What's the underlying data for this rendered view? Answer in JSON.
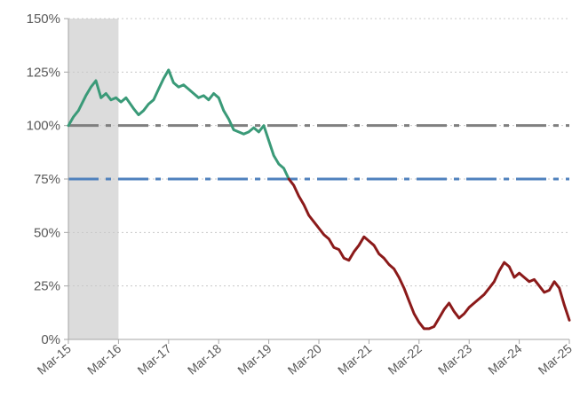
{
  "chart_data": {
    "type": "line",
    "x_ticks": [
      "Mar-15",
      "Mar-16",
      "Mar-17",
      "Mar-18",
      "Mar-19",
      "Mar-20",
      "Mar-21",
      "Mar-22",
      "Mar-23",
      "Mar-24",
      "Mar-25"
    ],
    "y_ticks": [
      "0%",
      "25%",
      "50%",
      "75%",
      "100%",
      "125%",
      "150%"
    ],
    "ylim": [
      0,
      150
    ],
    "xlim": [
      2015.0,
      2025.0
    ],
    "grid": "horizontal dotted",
    "legend": "none",
    "shaded_band": {
      "x_start": 2015.0,
      "x_end": 2016.0,
      "color": "#dcdcdc"
    },
    "reference_lines": [
      {
        "y": 100,
        "color": "#7f7f7f",
        "style": "dash-dot"
      },
      {
        "y": 75,
        "color": "#4f81bd",
        "style": "dash-dot"
      }
    ],
    "threshold_color_change_y": 75,
    "colors": {
      "above": "#3a9a78",
      "below": "#8b1a1a",
      "axis": "#a6a6a6",
      "grid": "#c8c8c8"
    },
    "series": [
      {
        "points": [
          [
            2015.0,
            100
          ],
          [
            2015.1,
            104
          ],
          [
            2015.2,
            107
          ],
          [
            2015.35,
            114
          ],
          [
            2015.45,
            118
          ],
          [
            2015.55,
            121
          ],
          [
            2015.65,
            113
          ],
          [
            2015.75,
            115
          ],
          [
            2015.85,
            112
          ],
          [
            2015.95,
            113
          ],
          [
            2016.05,
            111
          ],
          [
            2016.15,
            113
          ],
          [
            2016.3,
            108
          ],
          [
            2016.4,
            105
          ],
          [
            2016.5,
            107
          ],
          [
            2016.6,
            110
          ],
          [
            2016.7,
            112
          ],
          [
            2016.8,
            117
          ],
          [
            2016.9,
            122
          ],
          [
            2017.0,
            126
          ],
          [
            2017.1,
            120
          ],
          [
            2017.2,
            118
          ],
          [
            2017.3,
            119
          ],
          [
            2017.4,
            117
          ],
          [
            2017.5,
            115
          ],
          [
            2017.6,
            113
          ],
          [
            2017.7,
            114
          ],
          [
            2017.8,
            112
          ],
          [
            2017.9,
            115
          ],
          [
            2018.0,
            113
          ],
          [
            2018.1,
            107
          ],
          [
            2018.2,
            103
          ],
          [
            2018.3,
            98
          ],
          [
            2018.4,
            97
          ],
          [
            2018.5,
            96
          ],
          [
            2018.6,
            97
          ],
          [
            2018.7,
            99
          ],
          [
            2018.8,
            97
          ],
          [
            2018.9,
            100
          ],
          [
            2019.0,
            93
          ],
          [
            2019.1,
            86
          ],
          [
            2019.2,
            82
          ],
          [
            2019.3,
            80
          ],
          [
            2019.4,
            75
          ],
          [
            2019.5,
            72
          ],
          [
            2019.6,
            67
          ],
          [
            2019.7,
            63
          ],
          [
            2019.8,
            58
          ],
          [
            2019.9,
            55
          ],
          [
            2020.0,
            52
          ],
          [
            2020.1,
            49
          ],
          [
            2020.2,
            47
          ],
          [
            2020.3,
            43
          ],
          [
            2020.4,
            42
          ],
          [
            2020.5,
            38
          ],
          [
            2020.6,
            37
          ],
          [
            2020.7,
            41
          ],
          [
            2020.8,
            44
          ],
          [
            2020.9,
            48
          ],
          [
            2021.0,
            46
          ],
          [
            2021.1,
            44
          ],
          [
            2021.2,
            40
          ],
          [
            2021.3,
            38
          ],
          [
            2021.4,
            35
          ],
          [
            2021.5,
            33
          ],
          [
            2021.6,
            29
          ],
          [
            2021.7,
            24
          ],
          [
            2021.8,
            18
          ],
          [
            2021.9,
            12
          ],
          [
            2022.0,
            8
          ],
          [
            2022.1,
            5
          ],
          [
            2022.2,
            5
          ],
          [
            2022.3,
            6
          ],
          [
            2022.4,
            10
          ],
          [
            2022.5,
            14
          ],
          [
            2022.6,
            17
          ],
          [
            2022.7,
            13
          ],
          [
            2022.8,
            10
          ],
          [
            2022.9,
            12
          ],
          [
            2023.0,
            15
          ],
          [
            2023.1,
            17
          ],
          [
            2023.2,
            19
          ],
          [
            2023.3,
            21
          ],
          [
            2023.4,
            24
          ],
          [
            2023.5,
            27
          ],
          [
            2023.6,
            32
          ],
          [
            2023.7,
            36
          ],
          [
            2023.8,
            34
          ],
          [
            2023.9,
            29
          ],
          [
            2024.0,
            31
          ],
          [
            2024.1,
            29
          ],
          [
            2024.2,
            27
          ],
          [
            2024.3,
            28
          ],
          [
            2024.4,
            25
          ],
          [
            2024.5,
            22
          ],
          [
            2024.6,
            23
          ],
          [
            2024.7,
            27
          ],
          [
            2024.8,
            24
          ],
          [
            2024.9,
            16
          ],
          [
            2025.0,
            9
          ]
        ]
      }
    ]
  }
}
